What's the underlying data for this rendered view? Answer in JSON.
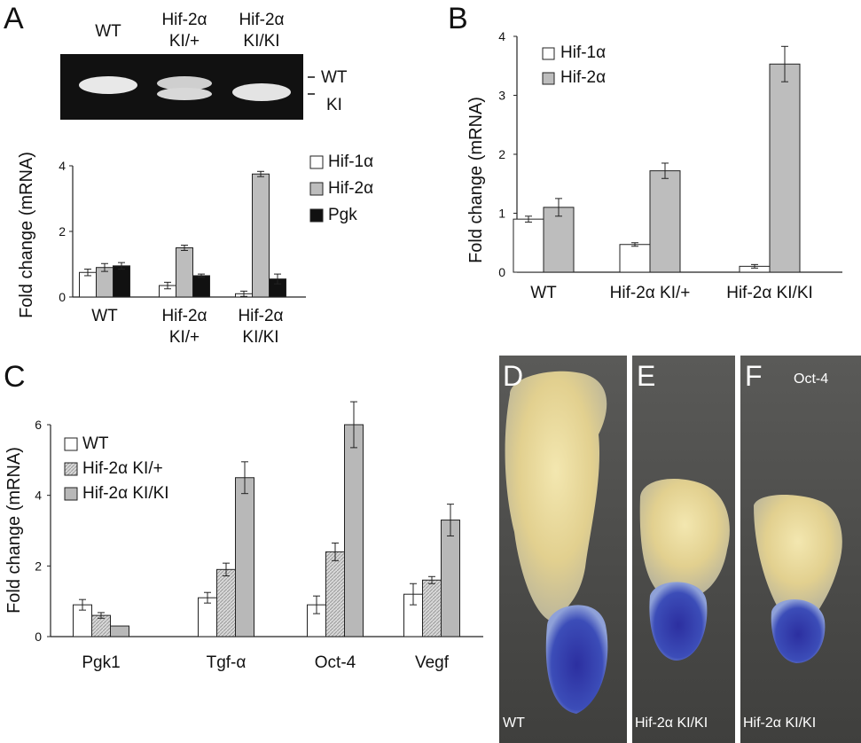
{
  "panels": {
    "a": "A",
    "b": "B",
    "c": "C",
    "d": "D",
    "e": "E",
    "f": "F"
  },
  "gel": {
    "lanes": [
      [
        "WT"
      ],
      [
        "Hif-2α",
        "KI/+"
      ],
      [
        "Hif-2α",
        "KI/KI"
      ]
    ],
    "band_labels": [
      "WT",
      "KI"
    ]
  },
  "photos": {
    "d_label": "WT",
    "e_label": "Hif-2α KI/KI",
    "f_label": "Hif-2α KI/KI",
    "f_marker": "Oct-4"
  },
  "colors": {
    "hif1a": "#ffffff",
    "hif2a": "#bdbdbd",
    "pgk": "#111111",
    "ki_plus": "#d6d6d6",
    "ki_ki": "#b8b8b8"
  },
  "chart_data": [
    {
      "id": "A",
      "type": "bar",
      "ylabel": "Fold change (mRNA)",
      "ylim": [
        0,
        4
      ],
      "yticks": [
        0,
        2,
        4
      ],
      "categories": [
        [
          "WT"
        ],
        [
          "Hif-2α",
          "KI/+"
        ],
        [
          "Hif-2α",
          "KI/KI"
        ]
      ],
      "series": [
        {
          "name": "Hif-1α",
          "values": [
            0.75,
            0.35,
            0.1
          ],
          "errors": [
            0.1,
            0.1,
            0.08
          ]
        },
        {
          "name": "Hif-2α",
          "values": [
            0.9,
            1.5,
            3.75
          ],
          "errors": [
            0.12,
            0.08,
            0.08
          ]
        },
        {
          "name": "Pgk",
          "values": [
            0.95,
            0.65,
            0.55
          ],
          "errors": [
            0.1,
            0.05,
            0.15
          ]
        }
      ],
      "legend": "top-right"
    },
    {
      "id": "B",
      "type": "bar",
      "ylabel": "Fold change (mRNA)",
      "ylim": [
        0,
        4
      ],
      "yticks": [
        0,
        1,
        2,
        3,
        4
      ],
      "categories": [
        [
          "WT"
        ],
        [
          "Hif-2α KI/+"
        ],
        [
          "Hif-2α KI/KI"
        ]
      ],
      "series": [
        {
          "name": "Hif-1α",
          "values": [
            0.9,
            0.47,
            0.1
          ],
          "errors": [
            0.05,
            0.03,
            0.03
          ]
        },
        {
          "name": "Hif-2α",
          "values": [
            1.1,
            1.72,
            3.53
          ],
          "errors": [
            0.15,
            0.13,
            0.3
          ]
        }
      ],
      "legend": "top-left"
    },
    {
      "id": "C",
      "type": "bar",
      "ylabel": "Fold change (mRNA)",
      "ylim": [
        0,
        6
      ],
      "yticks": [
        0,
        2,
        4,
        6
      ],
      "categories": [
        [
          "Pgk1"
        ],
        [
          "Tgf-α"
        ],
        [
          "Oct-4"
        ],
        [
          "Vegf"
        ]
      ],
      "series": [
        {
          "name": "WT",
          "values": [
            0.9,
            1.1,
            0.9,
            1.2
          ],
          "errors": [
            0.15,
            0.15,
            0.25,
            0.3
          ]
        },
        {
          "name": "Hif-2α KI/+",
          "values": [
            0.6,
            1.9,
            2.4,
            1.6
          ],
          "errors": [
            0.08,
            0.18,
            0.25,
            0.1
          ]
        },
        {
          "name": "Hif-2α KI/KI",
          "values": [
            0.3,
            4.5,
            6.0,
            3.3
          ],
          "errors": [
            0.0,
            0.45,
            0.65,
            0.45
          ]
        }
      ],
      "legend": "top-left"
    }
  ]
}
